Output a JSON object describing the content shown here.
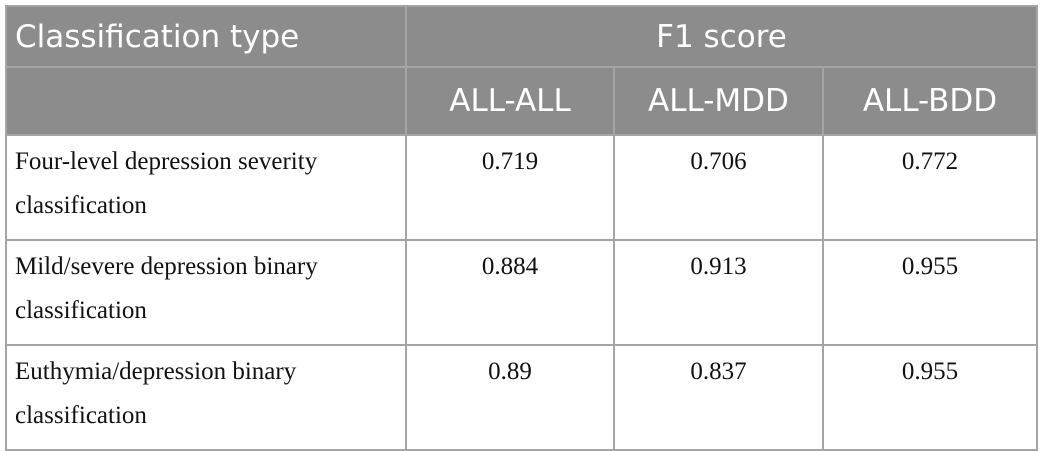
{
  "table": {
    "header": {
      "first": "Classification type",
      "group": "F1 score",
      "columns": [
        "ALL-ALL",
        "ALL-MDD",
        "ALL-BDD"
      ]
    },
    "rows": [
      {
        "label": "Four-level depression severity classification",
        "values": [
          "0.719",
          "0.706",
          "0.772"
        ]
      },
      {
        "label": "Mild/severe depression binary classification",
        "values": [
          "0.884",
          "0.913",
          "0.955"
        ]
      },
      {
        "label": "Euthymia/depression binary classification",
        "values": [
          "0.89",
          "0.837",
          "0.955"
        ]
      }
    ]
  }
}
